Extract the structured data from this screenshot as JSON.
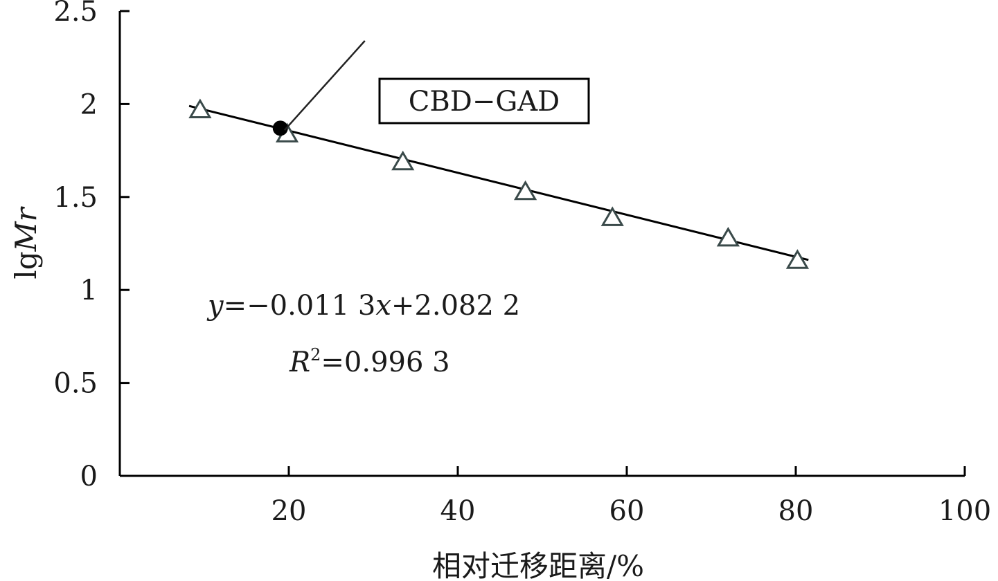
{
  "chart_data": {
    "type": "scatter",
    "xlabel": "相对迁移距离/%",
    "ylabel": "lgMr",
    "ylabel_parts": {
      "prefix": "lg",
      "italic": "Mr"
    },
    "xlim": [
      0,
      100
    ],
    "ylim": [
      0,
      2.5
    ],
    "x_ticks": [
      20,
      40,
      60,
      80,
      100
    ],
    "x_tick_labels": [
      "20",
      "40",
      "60",
      "80",
      "100"
    ],
    "y_ticks": [
      0,
      0.5,
      1,
      1.5,
      2,
      2.5
    ],
    "y_tick_labels": [
      "0",
      "0.5",
      "1",
      "1.5",
      "2",
      "2.5"
    ],
    "grid": false,
    "series": [
      {
        "marker": "triangle-open",
        "x": [
          9.5,
          19.8,
          33.5,
          48.0,
          58.3,
          72.0,
          80.2
        ],
        "y": [
          1.97,
          1.84,
          1.69,
          1.53,
          1.39,
          1.28,
          1.16
        ]
      }
    ],
    "fit_line": {
      "slope": -0.0113,
      "intercept": 2.0822,
      "x_range": [
        8.2,
        81.5
      ]
    },
    "highlight_point": {
      "x": 19.0,
      "y": 1.87,
      "marker": "circle-filled"
    },
    "annotation": {
      "label": "CBD−GAD",
      "points_to": {
        "x": 19.5,
        "y": 1.86
      },
      "leader_from": {
        "x": 29.0,
        "y": 2.34
      }
    },
    "equation": {
      "y_var": "y",
      "eq_part1": "=−0.011 3",
      "x_var": "x",
      "eq_part2": "+2.082 2",
      "r_var": "R",
      "r_sup": "2",
      "r_value": "=0.996 3"
    }
  }
}
